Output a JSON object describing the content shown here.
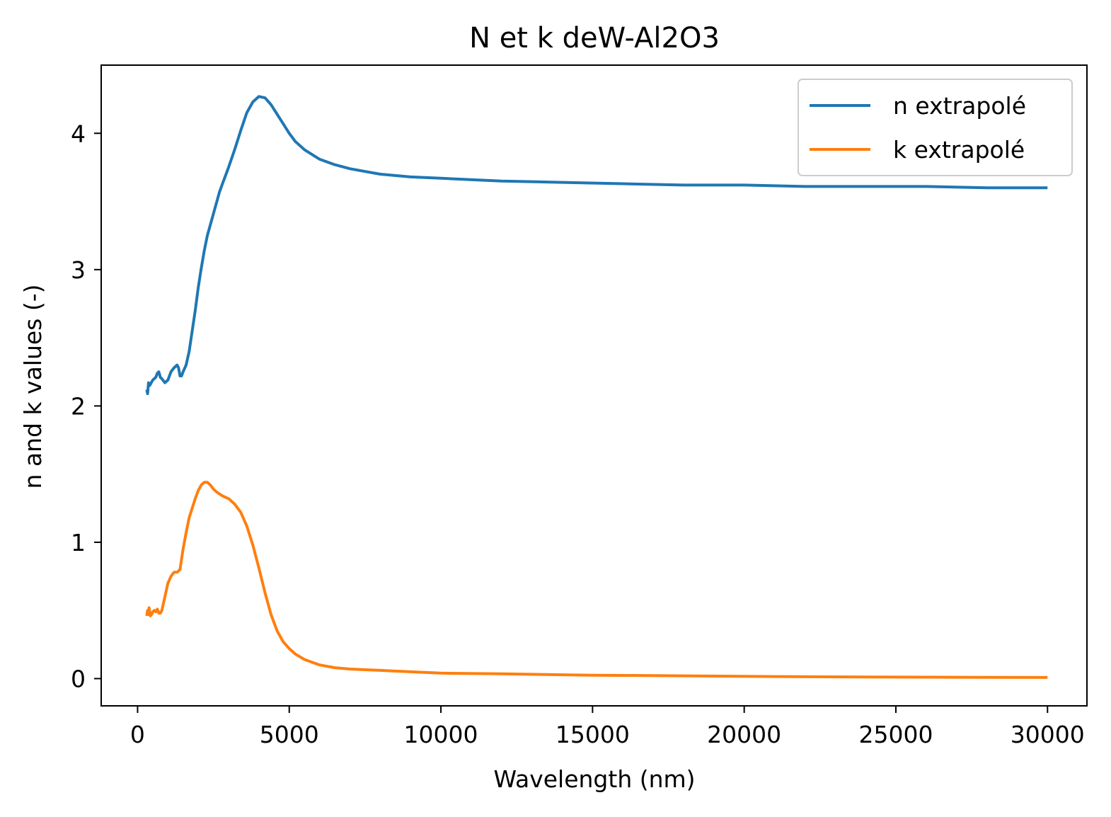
{
  "chart_data": {
    "type": "line",
    "title": "N et k deW-Al2O3",
    "xlabel": "Wavelength (nm)",
    "ylabel": "n and k values (-)",
    "xlim": [
      -1200,
      31300
    ],
    "ylim": [
      -0.2,
      4.5
    ],
    "xticks": [
      0,
      5000,
      10000,
      15000,
      20000,
      25000,
      30000
    ],
    "yticks": [
      0,
      1,
      2,
      3,
      4
    ],
    "grid": false,
    "legend_position": "top-right",
    "series": [
      {
        "name": "n extrapolé",
        "color": "#1f77b4",
        "x": [
          300,
          330,
          360,
          400,
          450,
          500,
          550,
          600,
          650,
          700,
          750,
          800,
          900,
          1000,
          1100,
          1200,
          1300,
          1350,
          1400,
          1450,
          1500,
          1600,
          1700,
          1800,
          1900,
          2000,
          2100,
          2200,
          2300,
          2400,
          2500,
          2600,
          2700,
          2800,
          2900,
          3000,
          3200,
          3400,
          3600,
          3800,
          4000,
          4200,
          4400,
          4600,
          4800,
          5000,
          5200,
          5500,
          6000,
          6500,
          7000,
          7500,
          8000,
          9000,
          10000,
          12000,
          14000,
          16000,
          18000,
          20000,
          22000,
          24000,
          26000,
          28000,
          30000
        ],
        "y": [
          2.12,
          2.09,
          2.17,
          2.15,
          2.17,
          2.19,
          2.2,
          2.21,
          2.24,
          2.25,
          2.21,
          2.2,
          2.17,
          2.19,
          2.25,
          2.28,
          2.3,
          2.28,
          2.22,
          2.22,
          2.25,
          2.3,
          2.4,
          2.55,
          2.7,
          2.87,
          3.01,
          3.14,
          3.25,
          3.33,
          3.41,
          3.49,
          3.57,
          3.63,
          3.69,
          3.75,
          3.88,
          4.02,
          4.15,
          4.23,
          4.27,
          4.26,
          4.21,
          4.14,
          4.07,
          4.0,
          3.94,
          3.88,
          3.81,
          3.77,
          3.74,
          3.72,
          3.7,
          3.68,
          3.67,
          3.65,
          3.64,
          3.63,
          3.62,
          3.62,
          3.61,
          3.61,
          3.61,
          3.6,
          3.6
        ]
      },
      {
        "name": "k extrapolé",
        "color": "#ff7f0e",
        "x": [
          300,
          330,
          360,
          380,
          420,
          460,
          500,
          550,
          600,
          650,
          700,
          750,
          800,
          850,
          900,
          1000,
          1100,
          1200,
          1300,
          1400,
          1500,
          1600,
          1700,
          1800,
          1900,
          2000,
          2100,
          2200,
          2300,
          2400,
          2500,
          2600,
          2800,
          3000,
          3200,
          3400,
          3600,
          3800,
          4000,
          4200,
          4400,
          4600,
          4800,
          5000,
          5200,
          5500,
          6000,
          6500,
          7000,
          8000,
          9000,
          10000,
          12000,
          15000,
          18000,
          21000,
          24000,
          27000,
          30000
        ],
        "y": [
          0.46,
          0.5,
          0.47,
          0.52,
          0.46,
          0.47,
          0.49,
          0.5,
          0.49,
          0.51,
          0.48,
          0.48,
          0.5,
          0.55,
          0.6,
          0.7,
          0.75,
          0.78,
          0.78,
          0.8,
          0.95,
          1.07,
          1.18,
          1.25,
          1.32,
          1.38,
          1.42,
          1.44,
          1.44,
          1.42,
          1.39,
          1.37,
          1.34,
          1.32,
          1.28,
          1.22,
          1.12,
          0.98,
          0.81,
          0.63,
          0.47,
          0.35,
          0.27,
          0.22,
          0.18,
          0.14,
          0.1,
          0.08,
          0.07,
          0.06,
          0.05,
          0.04,
          0.035,
          0.025,
          0.02,
          0.015,
          0.012,
          0.01,
          0.008
        ]
      }
    ]
  }
}
